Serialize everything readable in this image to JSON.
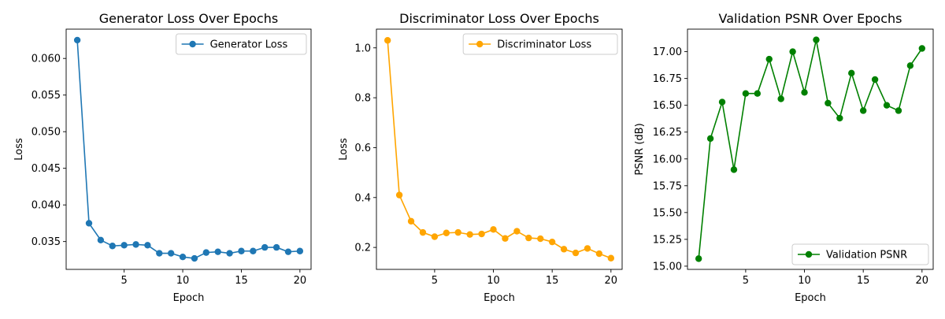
{
  "chart_data": [
    {
      "type": "line",
      "title": "Generator Loss Over Epochs",
      "xlabel": "Epoch",
      "ylabel": "Loss",
      "xlim": [
        0.05,
        20.95
      ],
      "ylim": [
        0.0312,
        0.064
      ],
      "xticks": [
        5,
        10,
        15,
        20
      ],
      "xtick_labels": [
        "5",
        "10",
        "15",
        "20"
      ],
      "yticks": [
        0.035,
        0.04,
        0.045,
        0.05,
        0.055,
        0.06
      ],
      "ytick_labels": [
        "0.035",
        "0.040",
        "0.045",
        "0.050",
        "0.055",
        "0.060"
      ],
      "grid": false,
      "legend_position": "top-right",
      "x": [
        1,
        2,
        3,
        4,
        5,
        6,
        7,
        8,
        9,
        10,
        11,
        12,
        13,
        14,
        15,
        16,
        17,
        18,
        19,
        20
      ],
      "series": [
        {
          "name": "Generator Loss",
          "color": "#1f77b4",
          "values": [
            0.0625,
            0.0375,
            0.0352,
            0.0344,
            0.0345,
            0.0346,
            0.0345,
            0.0334,
            0.0334,
            0.0329,
            0.0327,
            0.0335,
            0.0336,
            0.0334,
            0.0337,
            0.0337,
            0.0342,
            0.0342,
            0.0336,
            0.0337
          ]
        }
      ]
    },
    {
      "type": "line",
      "title": "Discriminator Loss Over Epochs",
      "xlabel": "Epoch",
      "ylabel": "Loss",
      "xlim": [
        0.05,
        20.95
      ],
      "ylim": [
        0.112,
        1.075
      ],
      "xticks": [
        5,
        10,
        15,
        20
      ],
      "xtick_labels": [
        "5",
        "10",
        "15",
        "20"
      ],
      "yticks": [
        0.2,
        0.4,
        0.6,
        0.8,
        1.0
      ],
      "ytick_labels": [
        "0.2",
        "0.4",
        "0.6",
        "0.8",
        "1.0"
      ],
      "grid": false,
      "legend_position": "top-right",
      "x": [
        1,
        2,
        3,
        4,
        5,
        6,
        7,
        8,
        9,
        10,
        11,
        12,
        13,
        14,
        15,
        16,
        17,
        18,
        19,
        20
      ],
      "series": [
        {
          "name": "Discriminator Loss",
          "color": "#ffa500",
          "values": [
            1.03,
            0.41,
            0.305,
            0.26,
            0.243,
            0.258,
            0.26,
            0.252,
            0.254,
            0.272,
            0.236,
            0.265,
            0.238,
            0.235,
            0.222,
            0.193,
            0.178,
            0.196,
            0.175,
            0.157
          ]
        }
      ]
    },
    {
      "type": "line",
      "title": "Validation PSNR Over Epochs",
      "xlabel": "Epoch",
      "ylabel": "PSNR (dB)",
      "xlim": [
        0.05,
        20.95
      ],
      "ylim": [
        14.97,
        17.21
      ],
      "xticks": [
        5,
        10,
        15,
        20
      ],
      "xtick_labels": [
        "5",
        "10",
        "15",
        "20"
      ],
      "yticks": [
        15.0,
        15.25,
        15.5,
        15.75,
        16.0,
        16.25,
        16.5,
        16.75,
        17.0
      ],
      "ytick_labels": [
        "15.00",
        "15.25",
        "15.50",
        "15.75",
        "16.00",
        "16.25",
        "16.50",
        "16.75",
        "17.00"
      ],
      "grid": false,
      "legend_position": "bottom-right",
      "x": [
        1,
        2,
        3,
        4,
        5,
        6,
        7,
        8,
        9,
        10,
        11,
        12,
        13,
        14,
        15,
        16,
        17,
        18,
        19,
        20
      ],
      "series": [
        {
          "name": "Validation PSNR",
          "color": "#008000",
          "values": [
            15.07,
            16.19,
            16.53,
            15.9,
            16.61,
            16.61,
            16.93,
            16.56,
            17.0,
            16.62,
            17.11,
            16.52,
            16.38,
            16.8,
            16.45,
            16.74,
            16.5,
            16.45,
            16.87,
            17.03
          ]
        }
      ]
    }
  ]
}
